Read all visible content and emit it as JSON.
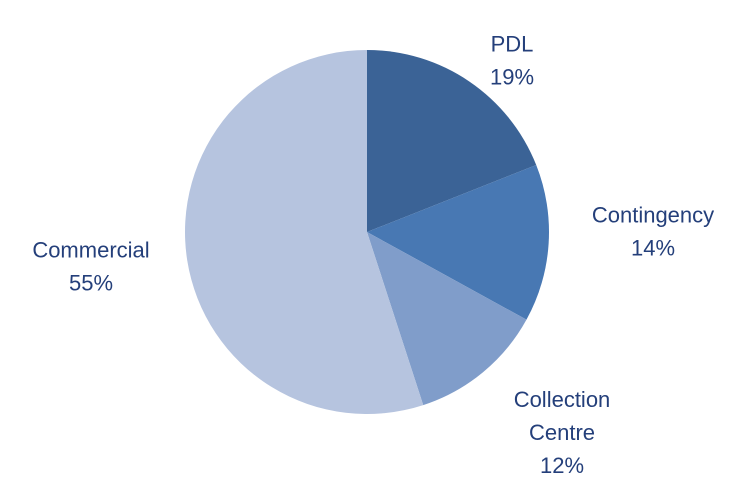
{
  "chart_data": {
    "type": "pie",
    "categories": [
      "PDL",
      "Contingency",
      "Collection Centre",
      "Commercial"
    ],
    "values": [
      19,
      14,
      12,
      55
    ],
    "value_labels": [
      "19%",
      "14%",
      "12%",
      "55%"
    ],
    "colors": [
      "#3b6396",
      "#4878b3",
      "#809dca",
      "#b6c4df"
    ]
  }
}
